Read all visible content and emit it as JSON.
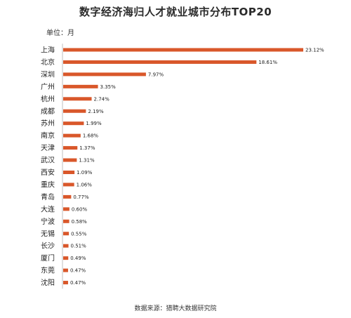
{
  "title": "数字经济海归人才就业城市分布TOP20",
  "unit": "单位：月",
  "source": "数据来源：猎聘大数据研究院",
  "colors": {
    "bar": "#d9572a",
    "axis": "#bfbfbf",
    "label": "#222222"
  },
  "chart_data": {
    "type": "bar",
    "orientation": "horizontal",
    "title": "数字经济海归人才就业城市分布TOP20",
    "xlabel": "",
    "ylabel": "",
    "categories": [
      "上海",
      "北京",
      "深圳",
      "广州",
      "杭州",
      "成都",
      "苏州",
      "南京",
      "天津",
      "武汉",
      "西安",
      "重庆",
      "青岛",
      "大连",
      "宁波",
      "无锡",
      "长沙",
      "厦门",
      "东莞",
      "沈阳"
    ],
    "values": [
      23.12,
      18.61,
      7.97,
      3.35,
      2.74,
      2.19,
      1.99,
      1.68,
      1.37,
      1.31,
      1.09,
      1.06,
      0.77,
      0.6,
      0.58,
      0.55,
      0.51,
      0.49,
      0.47,
      0.47
    ],
    "value_labels": [
      "23.12%",
      "18.61%",
      "7.97%",
      "3.35%",
      "2.74%",
      "2.19%",
      "1.99%",
      "1.68%",
      "1.37%",
      "1.31%",
      "1.09%",
      "1.06%",
      "0.77%",
      "0.60%",
      "0.58%",
      "0.55%",
      "0.51%",
      "0.49%",
      "0.47%",
      "0.47%"
    ],
    "xlim": [
      0,
      23.12
    ],
    "grid": false,
    "legend": "none"
  }
}
